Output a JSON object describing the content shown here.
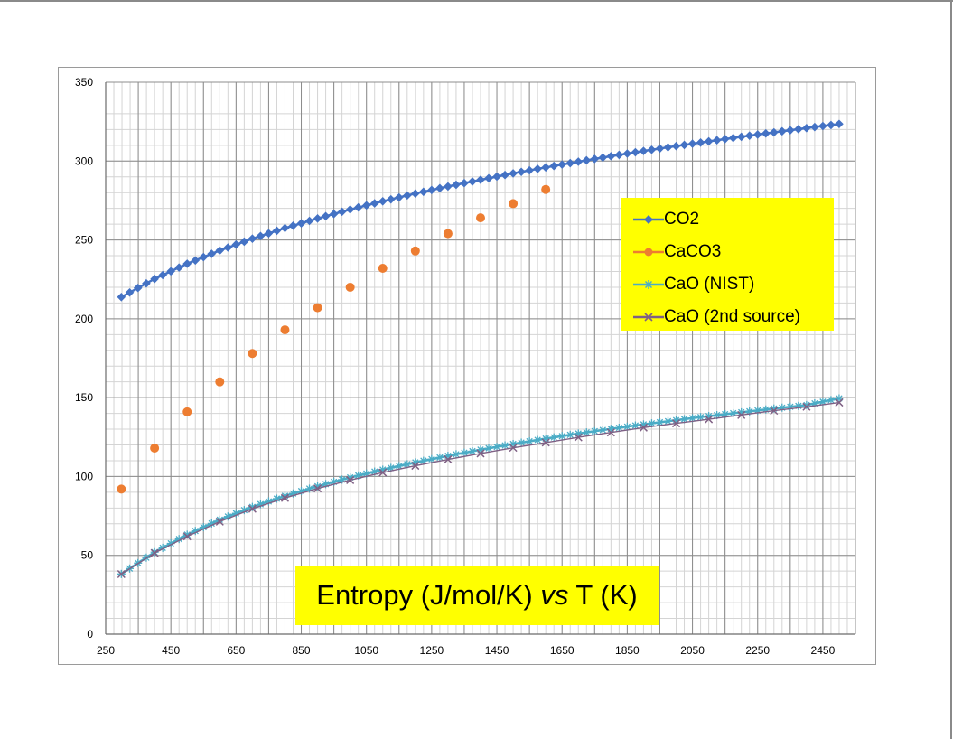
{
  "chart_data": {
    "type": "line",
    "title": "",
    "xlabel": "",
    "ylabel": "",
    "xlim": [
      250,
      2550
    ],
    "ylim": [
      0,
      350
    ],
    "x_ticks": [
      "250",
      "450",
      "650",
      "850",
      "1050",
      "1250",
      "1450",
      "1650",
      "1850",
      "2050",
      "2250",
      "2450"
    ],
    "y_ticks": [
      "0",
      "50",
      "100",
      "150",
      "200",
      "250",
      "300",
      "350"
    ],
    "grid": true,
    "legend_position": "right, upper middle",
    "annotation": {
      "prefix": "Entropy (J/mol/K) ",
      "italic": "vs",
      "suffix": " T (K)"
    },
    "series": [
      {
        "name": "CO2",
        "color": "#4472C4",
        "marker": "diamond",
        "x": [
          298,
          400,
          500,
          600,
          700,
          800,
          900,
          1000,
          1100,
          1200,
          1300,
          1400,
          1500,
          1600,
          1700,
          1800,
          1900,
          2000,
          2100,
          2200,
          2300,
          2400,
          2500
        ],
        "y": [
          213.8,
          225.3,
          234.9,
          243.3,
          250.8,
          257.5,
          263.6,
          269.3,
          274.5,
          279.4,
          283.9,
          288.1,
          292.2,
          296.0,
          299.6,
          303.1,
          306.4,
          309.5,
          312.5,
          315.4,
          318.2,
          320.9,
          323.5
        ]
      },
      {
        "name": "CaCO3",
        "color": "#ED7D31",
        "marker": "circle",
        "x": [
          298,
          400,
          500,
          600,
          700,
          800,
          900,
          1000,
          1100,
          1200,
          1300,
          1400,
          1500,
          1600
        ],
        "y": [
          92,
          118,
          141,
          160,
          178,
          193,
          207,
          220,
          232,
          243,
          254,
          264,
          273,
          282
        ]
      },
      {
        "name": "CaO (NIST)",
        "color": "#4BACC6",
        "marker": "star",
        "x": [
          298,
          400,
          500,
          600,
          700,
          800,
          900,
          1000,
          1100,
          1200,
          1300,
          1400,
          1500,
          1600,
          1700,
          1800,
          1900,
          2000,
          2100,
          2200,
          2300,
          2400,
          2500
        ],
        "y": [
          38.2,
          52.0,
          63.1,
          72.6,
          80.7,
          87.7,
          93.8,
          99.4,
          104.3,
          108.9,
          113.1,
          117.0,
          120.6,
          124.0,
          127.2,
          130.2,
          133.0,
          135.7,
          138.3,
          140.7,
          143.1,
          145.3,
          149.5
        ]
      },
      {
        "name": "CaO (2nd source)",
        "color": "#7F6084",
        "marker": "x",
        "x": [
          298,
          400,
          500,
          600,
          700,
          800,
          900,
          1000,
          1100,
          1200,
          1300,
          1400,
          1500,
          1600,
          1700,
          1800,
          1900,
          2000,
          2100,
          2200,
          2300,
          2400,
          2500
        ],
        "y": [
          38.1,
          51.5,
          62.0,
          71.4,
          79.5,
          86.4,
          92.4,
          97.7,
          102.5,
          106.8,
          110.8,
          114.6,
          118.2,
          121.5,
          124.8,
          127.9,
          131.0,
          133.7,
          136.3,
          139.0,
          141.7,
          144.2,
          146.9
        ]
      }
    ]
  }
}
